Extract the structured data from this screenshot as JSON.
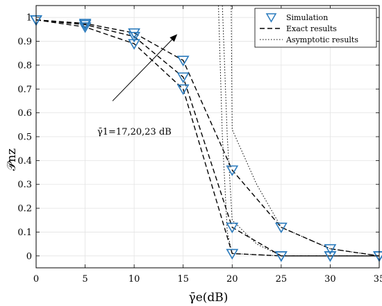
{
  "chart_data": {
    "type": "line",
    "title": "",
    "xlabel": "γ̄e(dB)",
    "ylabel": "𝒫nz",
    "xlim": [
      0,
      35
    ],
    "ylim": [
      -0.05,
      1.05
    ],
    "xticks": [
      0,
      5,
      10,
      15,
      20,
      25,
      30,
      35
    ],
    "yticks": [
      0,
      0.1,
      0.2,
      0.3,
      0.4,
      0.5,
      0.6,
      0.7,
      0.8,
      0.9,
      1
    ],
    "xtick_labels": [
      "0",
      "5",
      "10",
      "15",
      "20",
      "25",
      "30",
      "35"
    ],
    "ytick_labels": [
      "0",
      "0.1",
      "0.2",
      "0.3",
      "0.4",
      "0.5",
      "0.6",
      "0.7",
      "0.8",
      "0.9",
      "1"
    ],
    "grid": true,
    "legend_position": "top-right",
    "legend": [
      {
        "label": "Simulation",
        "style": "marker-triangle-down",
        "color": "#2b7bbd"
      },
      {
        "label": "Exact results",
        "style": "dashed",
        "color": "#000000"
      },
      {
        "label": "Asymptotic results",
        "style": "dotted",
        "color": "#000000"
      }
    ],
    "annotation": {
      "text": "γ̄1=17,20,23 dB",
      "arrow_from": [
        7.8,
        0.65
      ],
      "arrow_to": [
        14.4,
        0.93
      ]
    },
    "series": [
      {
        "group": "gamma1_17",
        "exact": [
          [
            0,
            0.99
          ],
          [
            5,
            0.96
          ],
          [
            10,
            0.89
          ],
          [
            15,
            0.7
          ],
          [
            20,
            0.01
          ],
          [
            25,
            0.0
          ],
          [
            30,
            0.0
          ],
          [
            35,
            0.0
          ]
        ],
        "simulation": [
          [
            0,
            0.99
          ],
          [
            5,
            0.96
          ],
          [
            10,
            0.89
          ],
          [
            15,
            0.7
          ],
          [
            20,
            0.01
          ],
          [
            25,
            0.0
          ],
          [
            30,
            0.0
          ],
          [
            35,
            0.0
          ]
        ],
        "asymptotic": [
          [
            18.6,
            1.05
          ],
          [
            19.0,
            0.5
          ],
          [
            19.5,
            0.1
          ],
          [
            20,
            0.01
          ],
          [
            25,
            0.0
          ],
          [
            30,
            0.0
          ],
          [
            35,
            0.0
          ]
        ]
      },
      {
        "group": "gamma1_20",
        "exact": [
          [
            0,
            0.99
          ],
          [
            5,
            0.97
          ],
          [
            10,
            0.92
          ],
          [
            15,
            0.75
          ],
          [
            20,
            0.12
          ],
          [
            25,
            0.0
          ],
          [
            30,
            0.0
          ],
          [
            35,
            0.0
          ]
        ],
        "simulation": [
          [
            0,
            0.99
          ],
          [
            5,
            0.97
          ],
          [
            10,
            0.92
          ],
          [
            15,
            0.75
          ],
          [
            20,
            0.12
          ],
          [
            25,
            0.0
          ],
          [
            30,
            0.0
          ],
          [
            35,
            0.0
          ]
        ],
        "asymptotic": [
          [
            19.0,
            1.05
          ],
          [
            19.5,
            0.5
          ],
          [
            20,
            0.15
          ],
          [
            22.5,
            0.05
          ],
          [
            25,
            0.0
          ],
          [
            30,
            0.0
          ],
          [
            35,
            0.0
          ]
        ]
      },
      {
        "group": "gamma1_23",
        "exact": [
          [
            0,
            0.99
          ],
          [
            5,
            0.975
          ],
          [
            10,
            0.935
          ],
          [
            15,
            0.82
          ],
          [
            20,
            0.36
          ],
          [
            25,
            0.12
          ],
          [
            30,
            0.03
          ],
          [
            35,
            0.0
          ]
        ],
        "simulation": [
          [
            0,
            0.99
          ],
          [
            5,
            0.975
          ],
          [
            10,
            0.935
          ],
          [
            15,
            0.82
          ],
          [
            20,
            0.36
          ],
          [
            25,
            0.12
          ],
          [
            30,
            0.03
          ],
          [
            35,
            0.0
          ]
        ],
        "asymptotic": [
          [
            19.9,
            1.05
          ],
          [
            20,
            0.53
          ],
          [
            22.5,
            0.3
          ],
          [
            25,
            0.12
          ],
          [
            30,
            0.03
          ],
          [
            35,
            0.0
          ]
        ]
      }
    ]
  }
}
